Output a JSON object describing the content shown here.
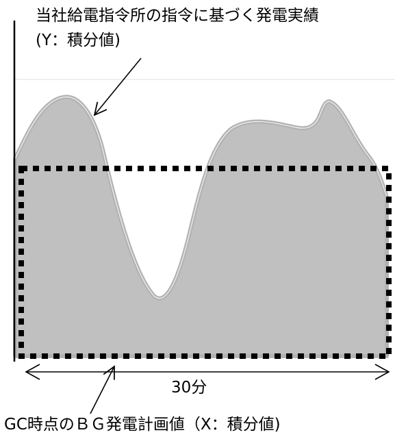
{
  "labels": {
    "actual_line1": "当社給電指令所の指令に基づく発電実績",
    "actual_line2": "(Y：積分値)",
    "duration": "30分",
    "plan": "GC時点のＢＧ発電計画値（X：積分値)"
  },
  "colors": {
    "area_fill": "#c0c0c0",
    "area_outline": "#b3b3b3",
    "inner_highlight": "#f2f2f2",
    "dotted_box": "#000000",
    "axis": "#000000",
    "upper_guideline": "#e6e6e6"
  },
  "icons": {
    "upper_arrow": "arrow-down-left-icon",
    "lower_arrow": "arrow-up-right-icon",
    "duration_arrow": "double-headed-arrow-icon"
  }
}
